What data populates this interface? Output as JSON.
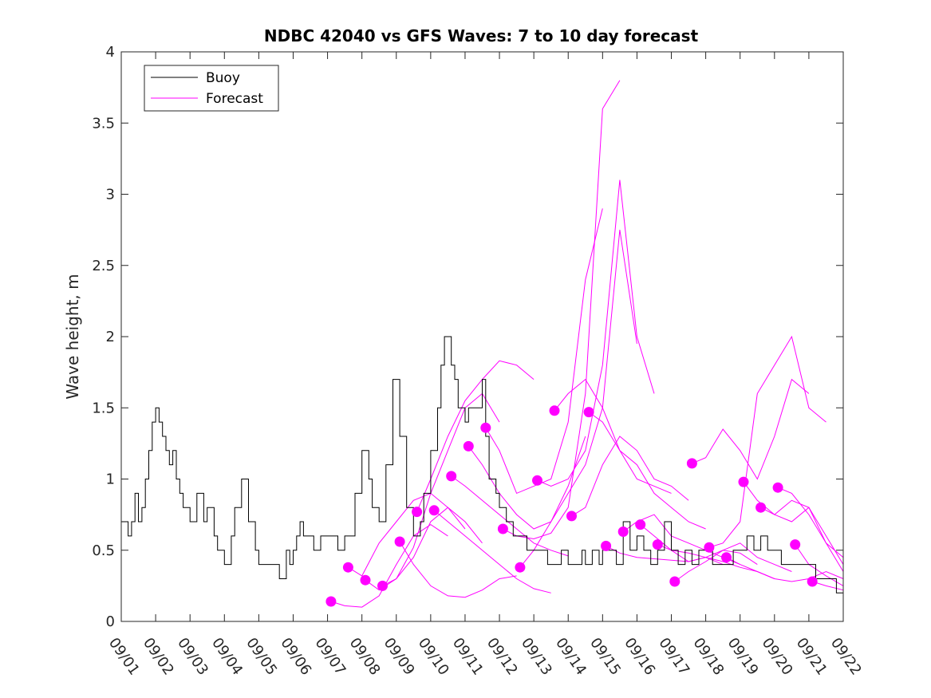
{
  "chart_data": {
    "type": "line",
    "title": "NDBC 42040 vs GFS Waves: 7 to 10 day forecast",
    "ylabel": "Wave height, m",
    "xlabel": "",
    "xlim": [
      0,
      21
    ],
    "ylim": [
      0,
      4
    ],
    "yticks": [
      0,
      0.5,
      1,
      1.5,
      2,
      2.5,
      3,
      3.5,
      4
    ],
    "ytick_labels": [
      "0",
      "0.5",
      "1",
      "1.5",
      "2",
      "2.5",
      "3",
      "3.5",
      "4"
    ],
    "xticks": [
      0,
      1,
      2,
      3,
      4,
      5,
      6,
      7,
      8,
      9,
      10,
      11,
      12,
      13,
      14,
      15,
      16,
      17,
      18,
      19,
      20,
      21
    ],
    "xtick_labels": [
      "09/01",
      "09/02",
      "09/03",
      "09/04",
      "09/05",
      "09/06",
      "09/07",
      "09/08",
      "09/09",
      "09/10",
      "09/11",
      "09/12",
      "09/13",
      "09/14",
      "09/15",
      "09/16",
      "09/17",
      "09/18",
      "09/19",
      "09/20",
      "09/21",
      "09/22"
    ],
    "x_units": "days since 09/01",
    "legend": {
      "position": "top-left",
      "entries": [
        {
          "label": "Buoy",
          "color": "#000000"
        },
        {
          "label": "Forecast",
          "color": "#ff00ff"
        }
      ]
    },
    "series": [
      {
        "name": "Buoy",
        "color": "#000000",
        "x": [
          0,
          0.1,
          0.2,
          0.3,
          0.4,
          0.5,
          0.6,
          0.7,
          0.8,
          0.9,
          1.0,
          1.1,
          1.2,
          1.3,
          1.4,
          1.5,
          1.6,
          1.7,
          1.8,
          1.9,
          2.0,
          2.2,
          2.4,
          2.5,
          2.6,
          2.7,
          2.8,
          3.0,
          3.2,
          3.3,
          3.5,
          3.7,
          3.9,
          4.0,
          4.2,
          4.4,
          4.6,
          4.8,
          4.9,
          5.0,
          5.1,
          5.2,
          5.3,
          5.4,
          5.5,
          5.6,
          5.8,
          6.0,
          6.2,
          6.3,
          6.5,
          6.6,
          6.8,
          7.0,
          7.2,
          7.3,
          7.5,
          7.7,
          7.9,
          8.1,
          8.3,
          8.5,
          8.7,
          8.8,
          9.0,
          9.2,
          9.3,
          9.4,
          9.6,
          9.7,
          9.8,
          10.0,
          10.1,
          10.3,
          10.5,
          10.6,
          10.7,
          10.9,
          11.0,
          11.2,
          11.4,
          11.6,
          11.8,
          12.0,
          12.2,
          12.4,
          12.6,
          12.8,
          13.0,
          13.2,
          13.4,
          13.5,
          13.7,
          13.9,
          14.0,
          14.2,
          14.4,
          14.6,
          14.8,
          15.0,
          15.2,
          15.4,
          15.6,
          15.8,
          16.0,
          16.2,
          16.4,
          16.6,
          16.8,
          17.0,
          17.2,
          17.4,
          17.6,
          17.8,
          18.0,
          18.2,
          18.4,
          18.6,
          18.8,
          19.0,
          19.2,
          19.4,
          19.6,
          19.8,
          20.0,
          20.2,
          20.4,
          20.6,
          20.8,
          21.0
        ],
        "y": [
          0.7,
          0.7,
          0.6,
          0.7,
          0.9,
          0.7,
          0.8,
          1.0,
          1.2,
          1.4,
          1.5,
          1.4,
          1.3,
          1.2,
          1.1,
          1.2,
          1.0,
          0.9,
          0.8,
          0.8,
          0.7,
          0.9,
          0.7,
          0.8,
          0.8,
          0.6,
          0.5,
          0.4,
          0.6,
          0.8,
          1.0,
          0.7,
          0.5,
          0.4,
          0.4,
          0.4,
          0.3,
          0.5,
          0.4,
          0.5,
          0.6,
          0.7,
          0.6,
          0.6,
          0.6,
          0.5,
          0.6,
          0.6,
          0.6,
          0.5,
          0.6,
          0.6,
          0.9,
          1.2,
          1.0,
          0.8,
          0.7,
          1.1,
          1.7,
          1.3,
          0.8,
          0.6,
          0.7,
          0.9,
          1.2,
          1.5,
          1.8,
          2.0,
          1.8,
          1.7,
          1.5,
          1.4,
          1.5,
          1.5,
          1.7,
          1.3,
          1.0,
          0.9,
          0.8,
          0.7,
          0.6,
          0.6,
          0.5,
          0.5,
          0.5,
          0.4,
          0.4,
          0.5,
          0.4,
          0.4,
          0.5,
          0.4,
          0.5,
          0.4,
          0.5,
          0.5,
          0.4,
          0.7,
          0.5,
          0.6,
          0.5,
          0.4,
          0.5,
          0.7,
          0.5,
          0.4,
          0.5,
          0.4,
          0.5,
          0.5,
          0.4,
          0.4,
          0.4,
          0.5,
          0.5,
          0.6,
          0.5,
          0.6,
          0.5,
          0.5,
          0.4,
          0.4,
          0.4,
          0.4,
          0.4,
          0.3,
          0.3,
          0.3,
          0.2,
          0.3
        ]
      },
      {
        "name": "Forecast 1",
        "color": "#ff00ff",
        "x": [
          6.1,
          6.5,
          7.0,
          7.5,
          8.0,
          8.5,
          9.0,
          9.5
        ],
        "y": [
          0.14,
          0.11,
          0.1,
          0.18,
          0.4,
          0.6,
          0.68,
          0.6
        ]
      },
      {
        "name": "Forecast 2",
        "color": "#ff00ff",
        "x": [
          6.6,
          7.0,
          7.5,
          8.0,
          8.5,
          9.0,
          9.5,
          10.0
        ],
        "y": [
          0.38,
          0.32,
          0.55,
          0.7,
          0.85,
          0.9,
          0.8,
          0.65
        ]
      },
      {
        "name": "Forecast 3",
        "color": "#ff00ff",
        "x": [
          7.1,
          7.5,
          8.0,
          8.5,
          9.0,
          9.5,
          10.0,
          10.5
        ],
        "y": [
          0.29,
          0.22,
          0.3,
          0.45,
          0.7,
          0.8,
          0.7,
          0.55
        ]
      },
      {
        "name": "Forecast 4",
        "color": "#ff00ff",
        "x": [
          7.6,
          8.0,
          8.5,
          9.0,
          9.5,
          10.0,
          10.5,
          11.0
        ],
        "y": [
          0.25,
          0.3,
          0.52,
          0.9,
          1.2,
          1.5,
          1.6,
          1.4
        ]
      },
      {
        "name": "Forecast 5",
        "color": "#ff00ff",
        "x": [
          8.1,
          8.5,
          9.0,
          9.5,
          10.0,
          10.5,
          11.0,
          11.5
        ],
        "y": [
          0.56,
          0.4,
          0.25,
          0.18,
          0.17,
          0.22,
          0.3,
          0.32
        ]
      },
      {
        "name": "Forecast 6",
        "color": "#ff00ff",
        "x": [
          8.6,
          9.0,
          9.5,
          10.0,
          10.5,
          11.0,
          11.5,
          12.0
        ],
        "y": [
          0.77,
          1.0,
          1.3,
          1.55,
          1.7,
          1.83,
          1.8,
          1.7
        ]
      },
      {
        "name": "Forecast 7",
        "color": "#ff00ff",
        "x": [
          9.1,
          9.5,
          10.0,
          10.5,
          11.0,
          11.5,
          12.0,
          12.5
        ],
        "y": [
          0.78,
          0.7,
          0.6,
          0.5,
          0.4,
          0.3,
          0.23,
          0.2
        ]
      },
      {
        "name": "Forecast 8",
        "color": "#ff00ff",
        "x": [
          9.6,
          10.0,
          10.5,
          11.0,
          11.5,
          12.0,
          12.5,
          13.0
        ],
        "y": [
          1.02,
          0.95,
          0.85,
          0.75,
          0.65,
          0.55,
          0.5,
          0.46
        ]
      },
      {
        "name": "Forecast 9",
        "color": "#ff00ff",
        "x": [
          10.1,
          10.5,
          11.0,
          11.5,
          12.0,
          12.5,
          13.0,
          13.5
        ],
        "y": [
          1.23,
          1.1,
          0.9,
          0.75,
          0.65,
          0.7,
          0.95,
          1.3
        ]
      },
      {
        "name": "Forecast 10",
        "color": "#ff00ff",
        "x": [
          10.6,
          11.0,
          11.5,
          12.0,
          12.5,
          13.0,
          13.5,
          14.0
        ],
        "y": [
          1.36,
          1.2,
          0.9,
          0.95,
          1.0,
          1.4,
          2.4,
          2.9
        ]
      },
      {
        "name": "Forecast 11",
        "color": "#ff00ff",
        "x": [
          11.1,
          11.5,
          12.0,
          12.5,
          13.0,
          13.5,
          14.0,
          14.5
        ],
        "y": [
          0.65,
          0.6,
          0.58,
          0.62,
          0.8,
          1.6,
          3.6,
          3.8
        ]
      },
      {
        "name": "Forecast 12",
        "color": "#ff00ff",
        "x": [
          11.6,
          12.0,
          12.5,
          13.0,
          13.5,
          14.0,
          14.5,
          15.0
        ],
        "y": [
          0.38,
          0.5,
          0.7,
          0.9,
          1.1,
          1.5,
          2.75,
          1.95
        ]
      },
      {
        "name": "Forecast 13",
        "color": "#ff00ff",
        "x": [
          12.1,
          12.5,
          13.0,
          13.5,
          14.0,
          14.5,
          15.0,
          15.5
        ],
        "y": [
          0.99,
          0.95,
          1.0,
          1.2,
          1.8,
          3.1,
          2.0,
          1.6
        ]
      },
      {
        "name": "Forecast 14",
        "color": "#ff00ff",
        "x": [
          12.6,
          13.0,
          13.5,
          14.0,
          14.5,
          15.0,
          15.5,
          16.0
        ],
        "y": [
          1.48,
          1.6,
          1.7,
          1.5,
          1.2,
          1.0,
          0.95,
          0.9
        ]
      },
      {
        "name": "Forecast 15",
        "color": "#ff00ff",
        "x": [
          13.1,
          13.5,
          14.0,
          14.5,
          15.0,
          15.5,
          16.0,
          16.5
        ],
        "y": [
          0.74,
          0.8,
          1.1,
          1.3,
          1.2,
          1.0,
          0.95,
          0.85
        ]
      },
      {
        "name": "Forecast 16",
        "color": "#ff00ff",
        "x": [
          13.6,
          14.0,
          14.5,
          15.0,
          15.5,
          16.0,
          16.5,
          17.0
        ],
        "y": [
          1.47,
          1.4,
          1.2,
          1.1,
          0.9,
          0.8,
          0.7,
          0.65
        ]
      },
      {
        "name": "Forecast 17",
        "color": "#ff00ff",
        "x": [
          14.1,
          14.5,
          15.0,
          15.5,
          16.0,
          16.5,
          17.0,
          17.5
        ],
        "y": [
          0.53,
          0.48,
          0.45,
          0.44,
          0.43,
          0.42,
          0.45,
          0.4
        ]
      },
      {
        "name": "Forecast 18",
        "color": "#ff00ff",
        "x": [
          14.6,
          15.0,
          15.5,
          16.0,
          16.5,
          17.0,
          17.5,
          18.0
        ],
        "y": [
          0.63,
          0.7,
          0.75,
          0.6,
          0.55,
          0.5,
          0.45,
          0.4
        ]
      },
      {
        "name": "Forecast 19",
        "color": "#ff00ff",
        "x": [
          15.1,
          15.5,
          16.0,
          16.5,
          17.0,
          17.5,
          18.0,
          18.5
        ],
        "y": [
          0.68,
          0.6,
          0.5,
          0.42,
          0.45,
          0.5,
          0.48,
          0.4
        ]
      },
      {
        "name": "Forecast 20",
        "color": "#ff00ff",
        "x": [
          15.6,
          16.0,
          16.5,
          17.0,
          17.5,
          18.0,
          18.5,
          19.0
        ],
        "y": [
          0.54,
          0.5,
          0.48,
          0.45,
          0.42,
          0.38,
          0.35,
          0.3
        ]
      },
      {
        "name": "Forecast 21",
        "color": "#ff00ff",
        "x": [
          16.1,
          16.5,
          17.0,
          17.5,
          18.0,
          18.5,
          19.0,
          19.5
        ],
        "y": [
          0.28,
          0.35,
          0.42,
          0.5,
          0.55,
          0.45,
          0.4,
          0.35
        ]
      },
      {
        "name": "Forecast 22",
        "color": "#ff00ff",
        "x": [
          16.6,
          17.0,
          17.5,
          18.0,
          18.5,
          19.0,
          19.5,
          20.0
        ],
        "y": [
          1.11,
          1.15,
          1.35,
          1.2,
          1.0,
          1.3,
          1.7,
          1.6
        ]
      },
      {
        "name": "Forecast 23",
        "color": "#ff00ff",
        "x": [
          17.1,
          17.5,
          18.0,
          18.5,
          19.0,
          19.5,
          20.0,
          20.5
        ],
        "y": [
          0.52,
          0.55,
          0.7,
          1.6,
          1.8,
          2.0,
          1.5,
          1.4
        ]
      },
      {
        "name": "Forecast 24",
        "color": "#ff00ff",
        "x": [
          17.6,
          18.0,
          18.5,
          19.0,
          19.5,
          20.0,
          20.5,
          21.0
        ],
        "y": [
          0.45,
          0.4,
          0.35,
          0.3,
          0.28,
          0.3,
          0.35,
          0.3
        ]
      },
      {
        "name": "Forecast 25",
        "color": "#ff00ff",
        "x": [
          18.1,
          18.5,
          19.0,
          19.5,
          20.0,
          20.5,
          21.0
        ],
        "y": [
          0.98,
          0.85,
          0.75,
          0.7,
          0.8,
          0.55,
          0.45
        ]
      },
      {
        "name": "Forecast 26",
        "color": "#ff00ff",
        "x": [
          18.6,
          19.0,
          19.5,
          20.0,
          20.5,
          21.0
        ],
        "y": [
          0.8,
          0.75,
          0.85,
          0.8,
          0.6,
          0.4
        ]
      },
      {
        "name": "Forecast 27",
        "color": "#ff00ff",
        "x": [
          19.1,
          19.5,
          20.0,
          20.5,
          21.0
        ],
        "y": [
          0.94,
          0.9,
          0.75,
          0.55,
          0.35
        ]
      },
      {
        "name": "Forecast 28",
        "color": "#ff00ff",
        "x": [
          19.6,
          20.0,
          20.5,
          21.0
        ],
        "y": [
          0.54,
          0.4,
          0.32,
          0.25
        ]
      },
      {
        "name": "Forecast 29",
        "color": "#ff00ff",
        "x": [
          20.1,
          20.5,
          21.0
        ],
        "y": [
          0.28,
          0.25,
          0.22
        ]
      }
    ],
    "markers": {
      "name": "Forecast start points",
      "color": "#ff00ff",
      "x": [
        6.1,
        6.6,
        7.1,
        7.6,
        8.1,
        8.6,
        9.1,
        9.6,
        10.1,
        10.6,
        11.1,
        11.6,
        12.1,
        12.6,
        13.1,
        13.6,
        14.1,
        14.6,
        15.1,
        15.6,
        16.1,
        16.6,
        17.1,
        17.6,
        18.1,
        18.6,
        19.1,
        19.6,
        20.1
      ],
      "y": [
        0.14,
        0.38,
        0.29,
        0.25,
        0.56,
        0.77,
        0.78,
        1.02,
        1.23,
        1.36,
        0.65,
        0.38,
        0.99,
        1.48,
        0.74,
        1.47,
        0.53,
        0.63,
        0.68,
        0.54,
        0.28,
        1.11,
        0.52,
        0.45,
        0.98,
        0.8,
        0.94,
        0.54,
        0.28
      ]
    }
  }
}
